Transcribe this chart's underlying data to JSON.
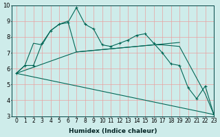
{
  "xlabel": "Humidex (Indice chaleur)",
  "xlim": [
    -0.5,
    23
  ],
  "ylim": [
    3,
    10
  ],
  "xticks": [
    0,
    1,
    2,
    3,
    4,
    5,
    6,
    7,
    8,
    9,
    10,
    11,
    12,
    13,
    14,
    15,
    16,
    17,
    18,
    19,
    20,
    21,
    22,
    23
  ],
  "yticks": [
    3,
    4,
    5,
    6,
    7,
    8,
    9,
    10
  ],
  "bg_color": "#ceecea",
  "grid_color": "#e8a0a0",
  "line_color": "#006655",
  "line1": [
    5.7,
    6.2,
    6.2,
    7.6,
    8.4,
    8.8,
    8.9,
    9.85,
    8.8,
    8.5,
    7.5,
    7.4,
    7.6,
    7.8,
    8.1,
    8.2,
    7.6,
    7.0,
    6.3,
    6.2,
    4.8,
    4.1,
    4.9,
    3.1
  ],
  "line2_x": [
    0,
    1,
    2,
    3,
    4,
    5,
    6,
    7,
    8,
    9,
    10,
    11,
    12,
    13,
    14,
    15,
    16,
    17,
    18,
    19
  ],
  "line2_y": [
    5.7,
    6.2,
    7.6,
    7.5,
    8.4,
    8.8,
    9.0,
    7.05,
    7.1,
    7.15,
    7.2,
    7.25,
    7.3,
    7.35,
    7.4,
    7.45,
    7.5,
    7.55,
    7.6,
    7.65
  ],
  "line3_x": [
    0,
    7,
    8,
    9,
    10,
    11,
    12,
    13,
    14,
    15,
    16,
    17,
    18,
    19,
    20,
    21,
    22,
    23
  ],
  "line3_y": [
    5.7,
    7.05,
    7.1,
    7.15,
    7.2,
    7.25,
    7.3,
    7.35,
    7.4,
    7.45,
    7.5,
    7.5,
    7.45,
    7.4,
    6.4,
    5.4,
    4.4,
    3.1
  ],
  "line4_x": [
    0,
    23
  ],
  "line4_y": [
    5.7,
    3.1
  ],
  "tick_fontsize": 5.5,
  "xlabel_fontsize": 6.5
}
